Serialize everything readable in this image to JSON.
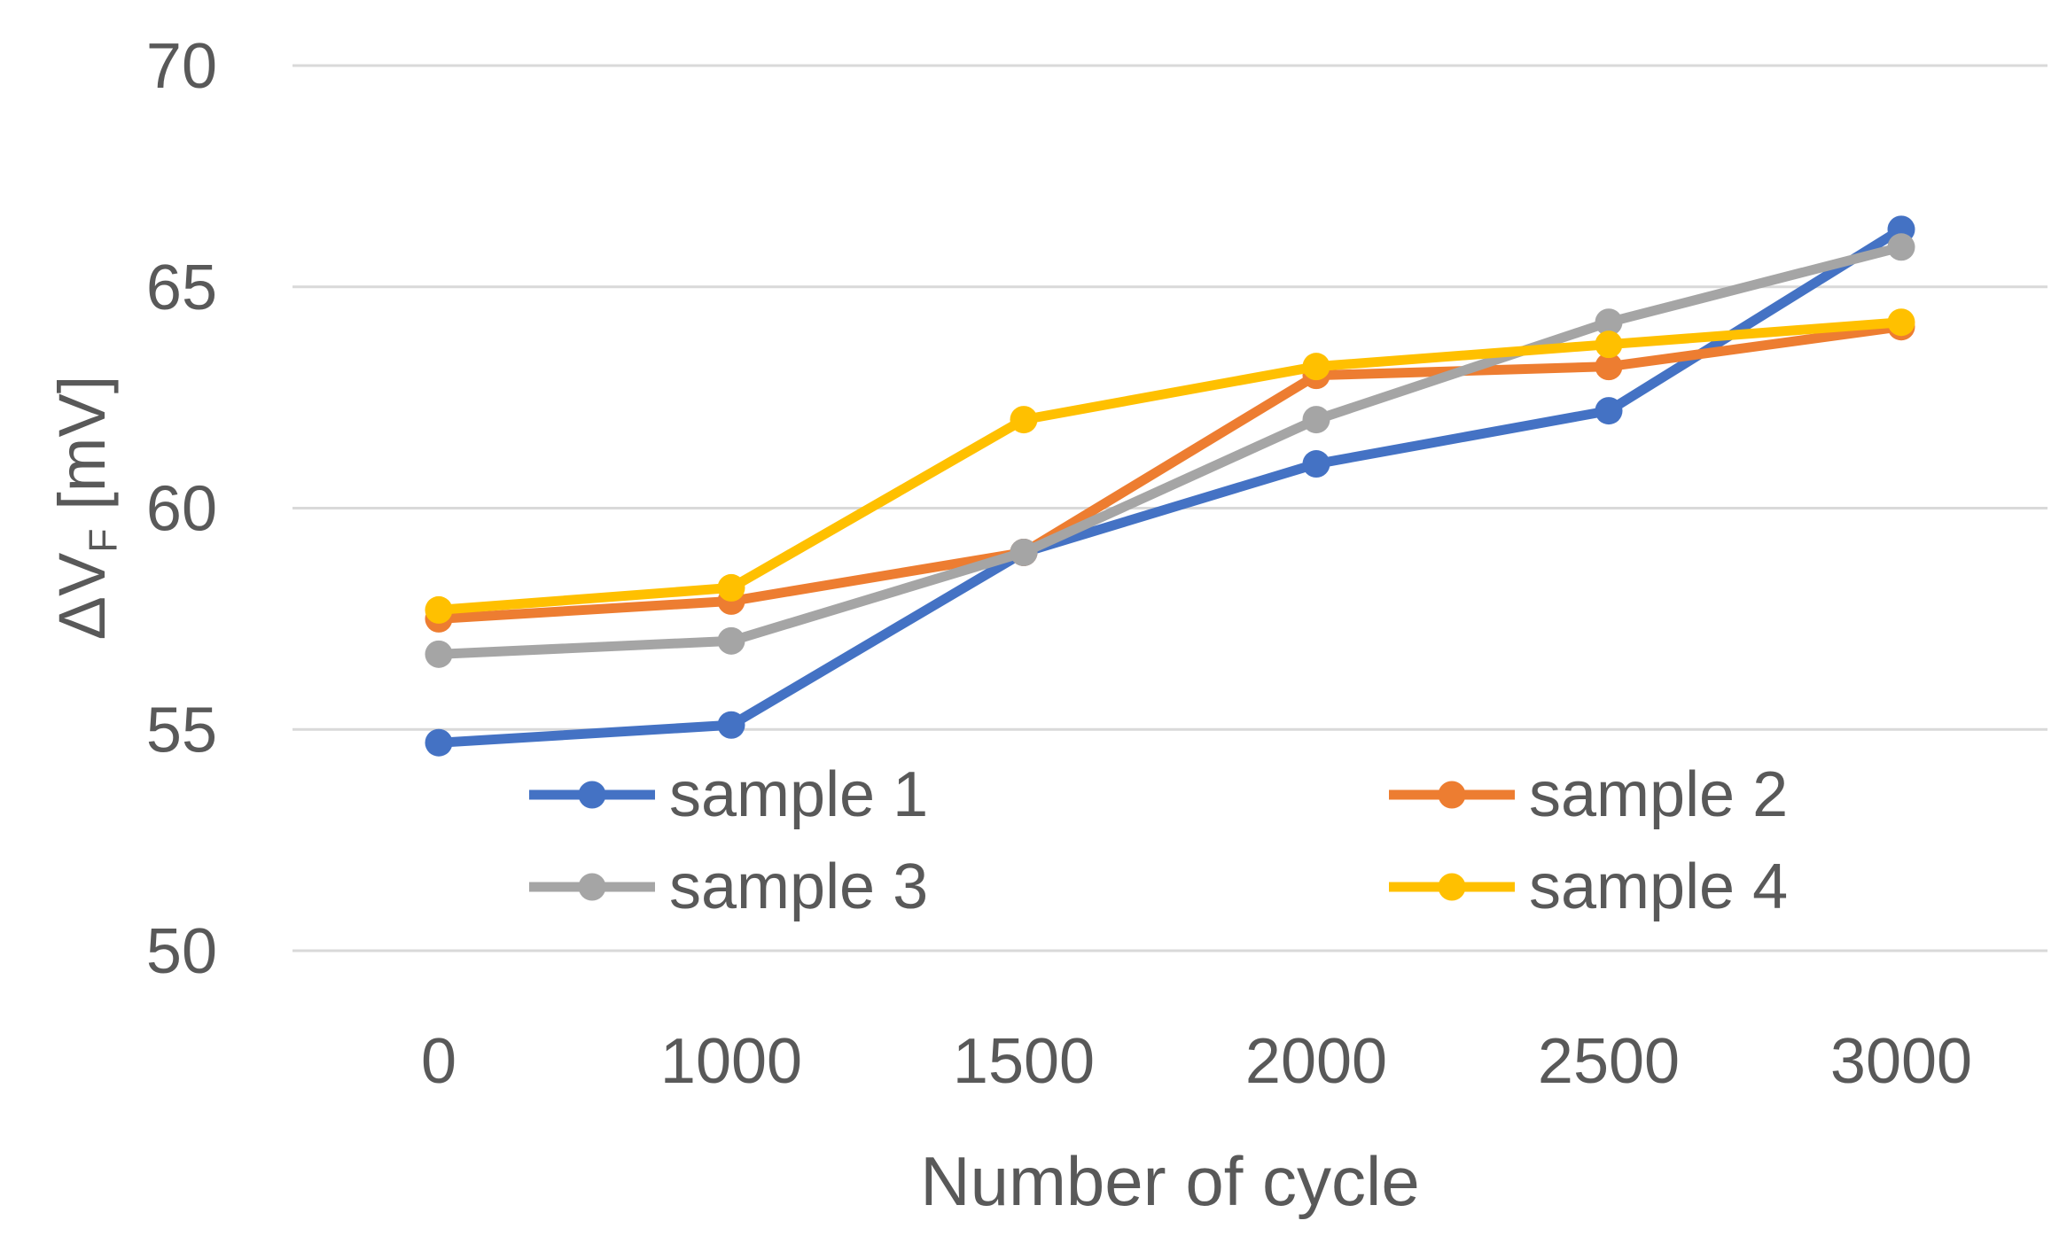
{
  "chart_data": {
    "type": "line",
    "title": "",
    "xlabel": "Number of cycle",
    "ylabel": "ΔV_F [mV]",
    "ylabel_parts": {
      "main": "ΔV",
      "sub": "F",
      "unit": "[mV]"
    },
    "x_axis_type": "category",
    "categories": [
      "0",
      "1000",
      "1500",
      "2000",
      "2500",
      "3000"
    ],
    "y_ticks": [
      70,
      65,
      60,
      55,
      50
    ],
    "ylim": [
      50,
      70
    ],
    "grid": "horizontal-only",
    "gridline_color": "#D9D9D9",
    "text_color": "#595959",
    "background_color": "#FFFFFF",
    "legend_position": "inside-bottom-two-columns",
    "series": [
      {
        "name": "sample 1",
        "color": "#4472C4",
        "values": [
          54.7,
          55.1,
          59.0,
          61.0,
          62.2,
          66.3
        ]
      },
      {
        "name": "sample 2",
        "color": "#ED7D31",
        "values": [
          57.5,
          57.9,
          59.0,
          63.0,
          63.2,
          64.1
        ]
      },
      {
        "name": "sample 3",
        "color": "#A5A5A5",
        "values": [
          56.7,
          57.0,
          59.0,
          62.0,
          64.2,
          65.9
        ]
      },
      {
        "name": "sample 4",
        "color": "#FFC000",
        "values": [
          57.7,
          58.2,
          62.0,
          63.2,
          63.7,
          64.2
        ]
      }
    ]
  }
}
